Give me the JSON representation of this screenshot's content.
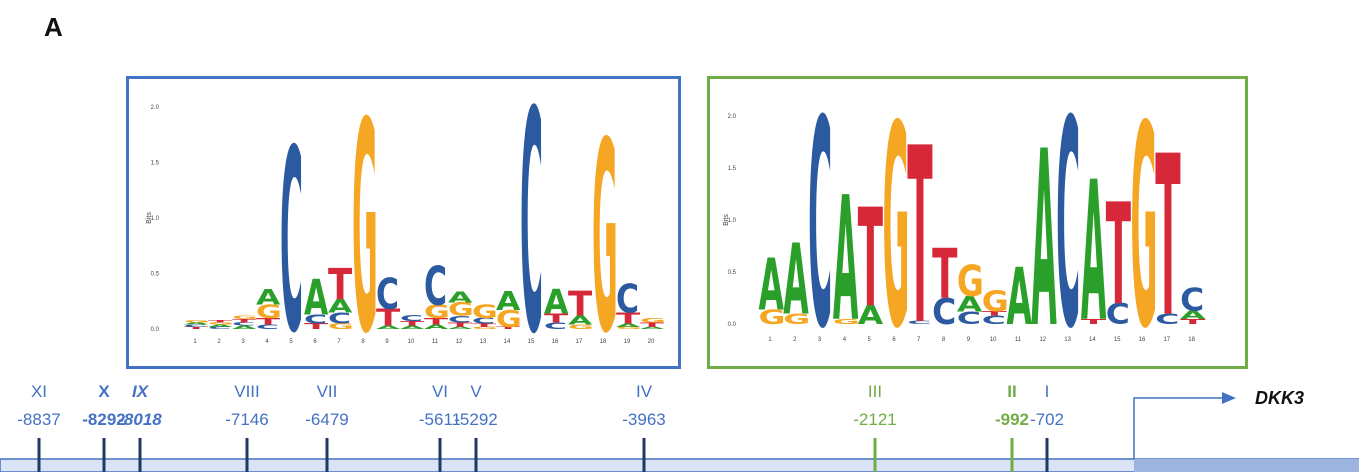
{
  "panel_label": "A",
  "colors": {
    "A": "#2aa02b",
    "C": "#2c5aa0",
    "G": "#f5a623",
    "T": "#d62839",
    "blue_site": "#4472c4",
    "green_site": "#70ad47",
    "strand_fill": "#dbe4f4",
    "tss_fill": "#9db4e0"
  },
  "motifs": [
    {
      "id": "left",
      "y_axis_label": "Bits",
      "y_ticks": [
        "2.0",
        "1.5",
        "1.0",
        "0.5",
        "0.0"
      ],
      "y_max": 2.0,
      "positions": [
        [
          [
            "T",
            0.02
          ],
          [
            "C",
            0.02
          ],
          [
            "A",
            0.02
          ],
          [
            "G",
            0.02
          ]
        ],
        [
          [
            "C",
            0.02
          ],
          [
            "A",
            0.02
          ],
          [
            "G",
            0.02
          ],
          [
            "T",
            0.02
          ]
        ],
        [
          [
            "A",
            0.03
          ],
          [
            "C",
            0.03
          ],
          [
            "T",
            0.03
          ],
          [
            "G",
            0.03
          ]
        ],
        [
          [
            "C",
            0.04
          ],
          [
            "T",
            0.06
          ],
          [
            "G",
            0.12
          ],
          [
            "A",
            0.14
          ]
        ],
        [
          [
            "C",
            1.65
          ]
        ],
        [
          [
            "T",
            0.05
          ],
          [
            "C",
            0.08
          ],
          [
            "A",
            0.32
          ]
        ],
        [
          [
            "G",
            0.05
          ],
          [
            "C",
            0.1
          ],
          [
            "A",
            0.12
          ],
          [
            "T",
            0.28
          ]
        ],
        [
          [
            "G",
            1.9
          ]
        ],
        [
          [
            "A",
            0.03
          ],
          [
            "T",
            0.15
          ],
          [
            "C",
            0.28
          ]
        ],
        [
          [
            "A",
            0.03
          ],
          [
            "T",
            0.04
          ],
          [
            "C",
            0.05
          ]
        ],
        [
          [
            "A",
            0.04
          ],
          [
            "T",
            0.06
          ],
          [
            "G",
            0.12
          ],
          [
            "C",
            0.35
          ]
        ],
        [
          [
            "A",
            0.02
          ],
          [
            "T",
            0.04
          ],
          [
            "C",
            0.06
          ],
          [
            "G",
            0.12
          ],
          [
            "A",
            0.1
          ]
        ],
        [
          [
            "G",
            0.02
          ],
          [
            "T",
            0.03
          ],
          [
            "C",
            0.05
          ],
          [
            "G",
            0.12
          ]
        ],
        [
          [
            "T",
            0.02
          ],
          [
            "G",
            0.15
          ],
          [
            "A",
            0.17
          ]
        ],
        [
          [
            "C",
            2.0
          ]
        ],
        [
          [
            "C",
            0.06
          ],
          [
            "T",
            0.08
          ],
          [
            "A",
            0.22
          ]
        ],
        [
          [
            "G",
            0.04
          ],
          [
            "A",
            0.08
          ],
          [
            "T",
            0.22
          ]
        ],
        [
          [
            "G",
            1.72
          ]
        ],
        [
          [
            "G",
            0.02
          ],
          [
            "A",
            0.03
          ],
          [
            "T",
            0.1
          ],
          [
            "C",
            0.26
          ]
        ],
        [
          [
            "A",
            0.02
          ],
          [
            "T",
            0.04
          ],
          [
            "G",
            0.04
          ]
        ]
      ],
      "x_labels": [
        "1",
        "2",
        "3",
        "4",
        "5",
        "6",
        "7",
        "8",
        "9",
        "10",
        "11",
        "12",
        "13",
        "14",
        "15",
        "16",
        "17",
        "18",
        "19",
        "20"
      ]
    },
    {
      "id": "right",
      "y_axis_label": "Bits",
      "y_ticks": [
        "2.0",
        "1.5",
        "1.0",
        "0.5",
        "0.0"
      ],
      "y_max": 2.0,
      "positions": [
        [
          [
            "G",
            0.14
          ],
          [
            "A",
            0.5
          ]
        ],
        [
          [
            "G",
            0.1
          ],
          [
            "A",
            0.68
          ]
        ],
        [
          [
            "C",
            2.0
          ]
        ],
        [
          [
            "G",
            0.05
          ],
          [
            "A",
            1.2
          ]
        ],
        [
          [
            "A",
            0.18
          ],
          [
            "T",
            0.95
          ]
        ],
        [
          [
            "G",
            1.95
          ]
        ],
        [
          [
            "C",
            0.03
          ],
          [
            "T",
            1.7
          ]
        ],
        [
          [
            "C",
            0.25
          ],
          [
            "T",
            0.48
          ]
        ],
        [
          [
            "C",
            0.12
          ],
          [
            "A",
            0.15
          ],
          [
            "G",
            0.3
          ]
        ],
        [
          [
            "C",
            0.08
          ],
          [
            "T",
            0.04
          ],
          [
            "G",
            0.2
          ]
        ],
        [
          [
            "A",
            0.55
          ]
        ],
        [
          [
            "A",
            1.7
          ]
        ],
        [
          [
            "C",
            2.0
          ]
        ],
        [
          [
            "T",
            0.05
          ],
          [
            "A",
            1.35
          ]
        ],
        [
          [
            "C",
            0.2
          ],
          [
            "T",
            0.98
          ]
        ],
        [
          [
            "G",
            1.95
          ]
        ],
        [
          [
            "C",
            0.1
          ],
          [
            "T",
            1.55
          ]
        ],
        [
          [
            "T",
            0.05
          ],
          [
            "A",
            0.08
          ],
          [
            "C",
            0.22
          ]
        ]
      ],
      "x_labels": [
        "1",
        "2",
        "3",
        "4",
        "5",
        "6",
        "7",
        "8",
        "9",
        "10",
        "11",
        "12",
        "13",
        "14",
        "15",
        "16",
        "17",
        "18"
      ]
    }
  ],
  "promoter": {
    "gene": "DKK3",
    "sites": [
      {
        "numeral": "XI",
        "position": "-8837",
        "color": "blue",
        "bold": false,
        "italic": false
      },
      {
        "numeral": "X",
        "position": "-8292",
        "color": "blue",
        "bold": true,
        "italic": false
      },
      {
        "numeral": "IX",
        "position": "-8018",
        "color": "blue",
        "bold": true,
        "italic": true
      },
      {
        "numeral": "VIII",
        "position": "-7146",
        "color": "blue",
        "bold": false,
        "italic": false
      },
      {
        "numeral": "VII",
        "position": "-6479",
        "color": "blue",
        "bold": false,
        "italic": false
      },
      {
        "numeral": "VI",
        "position": "-5611",
        "color": "blue",
        "bold": false,
        "italic": false
      },
      {
        "numeral": "V",
        "position": "-5292",
        "color": "blue",
        "bold": false,
        "italic": false
      },
      {
        "numeral": "IV",
        "position": "-3963",
        "color": "blue",
        "bold": false,
        "italic": false
      },
      {
        "numeral": "III",
        "position": "-2121",
        "color": "green",
        "bold": false,
        "italic": false
      },
      {
        "numeral": "II",
        "position": "-992",
        "color": "green",
        "bold": true,
        "italic": false
      },
      {
        "numeral": "I",
        "position": "-702",
        "color": "blue",
        "bold": false,
        "italic": false
      }
    ]
  }
}
